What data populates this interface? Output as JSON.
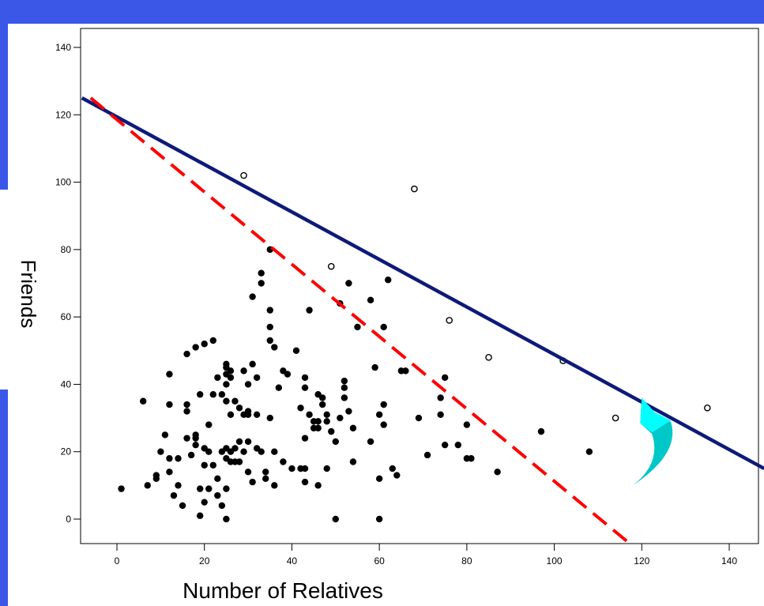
{
  "colors": {
    "slide_blue": "#3a57e8",
    "solid_line": "#0d1a7a",
    "dashed_line": "#ff0000",
    "arrow_light": "#00ffff",
    "arrow_dark": "#00c8c8",
    "point": "#000000"
  },
  "chart_data": {
    "type": "scatter",
    "xlabel": "Number of Relatives",
    "ylabel": "Friends",
    "xlim": [
      -8,
      148
    ],
    "ylim": [
      -7,
      145
    ],
    "xticks": [
      0,
      20,
      40,
      60,
      80,
      100,
      120,
      140
    ],
    "yticks": [
      0,
      20,
      40,
      60,
      80,
      100,
      120,
      140
    ],
    "grid": false,
    "legend": "none",
    "series": [
      {
        "marker": "filled",
        "points": [
          [
            1,
            9
          ],
          [
            6,
            35
          ],
          [
            7,
            10
          ],
          [
            9,
            12
          ],
          [
            9,
            13
          ],
          [
            10,
            20
          ],
          [
            11,
            25
          ],
          [
            12,
            43
          ],
          [
            12,
            34
          ],
          [
            12,
            14
          ],
          [
            12,
            18
          ],
          [
            13,
            7
          ],
          [
            14,
            18
          ],
          [
            14,
            10
          ],
          [
            15,
            4
          ],
          [
            16,
            34
          ],
          [
            16,
            32
          ],
          [
            16,
            24
          ],
          [
            16,
            49
          ],
          [
            17,
            19
          ],
          [
            18,
            25
          ],
          [
            18,
            24
          ],
          [
            18,
            22
          ],
          [
            18,
            51
          ],
          [
            19,
            1
          ],
          [
            19,
            37
          ],
          [
            19,
            9
          ],
          [
            20,
            52
          ],
          [
            20,
            21
          ],
          [
            20,
            5
          ],
          [
            20,
            16
          ],
          [
            21,
            28
          ],
          [
            21,
            9
          ],
          [
            21,
            20
          ],
          [
            22,
            53
          ],
          [
            22,
            37
          ],
          [
            22,
            16
          ],
          [
            23,
            42
          ],
          [
            23,
            12
          ],
          [
            23,
            7
          ],
          [
            24,
            37
          ],
          [
            24,
            20
          ],
          [
            24,
            4
          ],
          [
            25,
            46
          ],
          [
            25,
            45
          ],
          [
            25,
            43
          ],
          [
            25,
            40
          ],
          [
            25,
            35
          ],
          [
            25,
            21
          ],
          [
            25,
            18
          ],
          [
            25,
            9
          ],
          [
            25,
            0
          ],
          [
            26,
            44
          ],
          [
            26,
            42
          ],
          [
            26,
            31
          ],
          [
            26,
            20
          ],
          [
            26,
            17
          ],
          [
            27,
            35
          ],
          [
            27,
            21
          ],
          [
            27,
            17
          ],
          [
            28,
            33
          ],
          [
            28,
            23
          ],
          [
            28,
            17
          ],
          [
            29,
            44
          ],
          [
            29,
            31
          ],
          [
            29,
            20
          ],
          [
            30,
            40
          ],
          [
            30,
            32
          ],
          [
            30,
            23
          ],
          [
            30,
            31
          ],
          [
            30,
            14
          ],
          [
            31,
            66
          ],
          [
            31,
            46
          ],
          [
            31,
            11
          ],
          [
            32,
            42
          ],
          [
            32,
            31
          ],
          [
            32,
            21
          ],
          [
            33,
            73
          ],
          [
            33,
            20
          ],
          [
            33,
            70
          ],
          [
            34,
            14
          ],
          [
            34,
            12
          ],
          [
            35,
            80
          ],
          [
            35,
            62
          ],
          [
            35,
            57
          ],
          [
            35,
            53
          ],
          [
            35,
            30
          ],
          [
            36,
            51
          ],
          [
            36,
            20
          ],
          [
            36,
            10
          ],
          [
            37,
            39
          ],
          [
            38,
            44
          ],
          [
            38,
            17
          ],
          [
            39,
            43
          ],
          [
            40,
            15
          ],
          [
            41,
            50
          ],
          [
            42,
            33
          ],
          [
            42,
            15
          ],
          [
            43,
            42
          ],
          [
            43,
            39
          ],
          [
            43,
            24
          ],
          [
            43,
            15
          ],
          [
            43,
            11
          ],
          [
            44,
            62
          ],
          [
            44,
            31
          ],
          [
            45,
            29
          ],
          [
            45,
            27
          ],
          [
            46,
            37
          ],
          [
            46,
            29
          ],
          [
            46,
            27
          ],
          [
            46,
            10
          ],
          [
            47,
            36
          ],
          [
            47,
            34
          ],
          [
            48,
            15
          ],
          [
            48,
            31
          ],
          [
            48,
            29
          ],
          [
            49,
            26
          ],
          [
            50,
            0
          ],
          [
            50,
            23
          ],
          [
            51,
            30
          ],
          [
            51,
            64
          ],
          [
            52,
            41
          ],
          [
            52,
            39
          ],
          [
            52,
            36
          ],
          [
            53,
            70
          ],
          [
            53,
            32
          ],
          [
            54,
            17
          ],
          [
            54,
            27
          ],
          [
            55,
            57
          ],
          [
            58,
            65
          ],
          [
            58,
            23
          ],
          [
            59,
            45
          ],
          [
            60,
            31
          ],
          [
            60,
            12
          ],
          [
            60,
            0
          ],
          [
            61,
            57
          ],
          [
            61,
            28
          ],
          [
            61,
            34
          ],
          [
            62,
            71
          ],
          [
            63,
            15
          ],
          [
            64,
            13
          ],
          [
            65,
            44
          ],
          [
            66,
            44
          ],
          [
            69,
            30
          ],
          [
            71,
            19
          ],
          [
            74,
            36
          ],
          [
            74,
            31
          ],
          [
            75,
            42
          ],
          [
            75,
            22
          ],
          [
            78,
            22
          ],
          [
            80,
            28
          ],
          [
            80,
            18
          ],
          [
            81,
            18
          ],
          [
            87,
            14
          ],
          [
            97,
            26
          ],
          [
            108,
            20
          ]
        ]
      },
      {
        "marker": "open",
        "points": [
          [
            29,
            102
          ],
          [
            49,
            75
          ],
          [
            68,
            98
          ],
          [
            76,
            59
          ],
          [
            85,
            48
          ],
          [
            102,
            47
          ],
          [
            114,
            30
          ],
          [
            135,
            33
          ]
        ]
      }
    ],
    "lines": [
      {
        "style": "solid",
        "from": [
          -8,
          125
        ],
        "to": [
          148,
          15
        ]
      },
      {
        "style": "dashed",
        "from": [
          -6,
          125
        ],
        "to": [
          117,
          -7
        ]
      }
    ],
    "annotations": [
      {
        "type": "curved-arrow",
        "from": [
          118,
          3
        ],
        "to": [
          120,
          36
        ]
      }
    ]
  }
}
